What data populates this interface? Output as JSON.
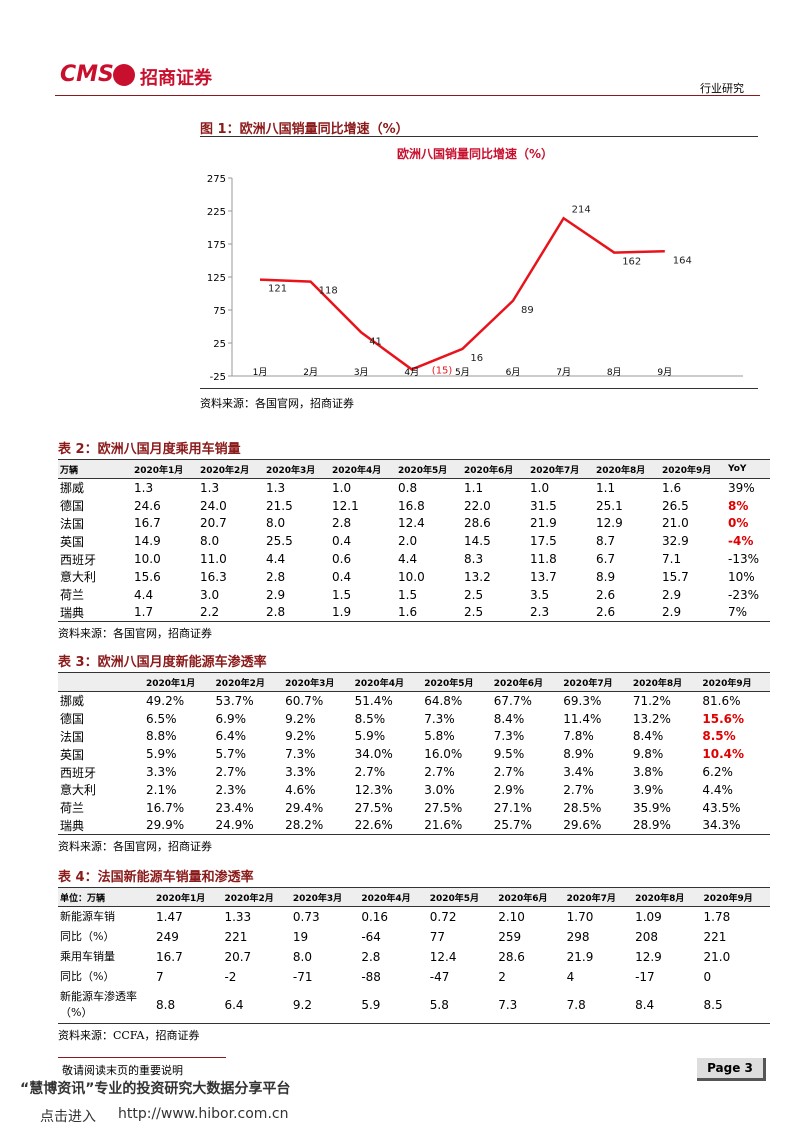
{
  "header": {
    "logo": "CMS",
    "brand": "招商证券",
    "section": "行业研究"
  },
  "figure": {
    "caption": "图 1：欧洲八国销量同比增速（%）",
    "source": "资料来源：各国官网，招商证券"
  },
  "chart_data": {
    "type": "line",
    "title": "欧洲八国销量同比增速（%）",
    "categories": [
      "1月",
      "2月",
      "3月",
      "4月",
      "5月",
      "6月",
      "7月",
      "8月",
      "9月"
    ],
    "values": [
      121,
      118,
      41,
      -15,
      16,
      89,
      214,
      162,
      164
    ],
    "value_labels": [
      "121",
      "118",
      "41",
      "(15)",
      "16",
      "89",
      "214",
      "162",
      "164"
    ],
    "color": "#e8141b",
    "ylim": [
      -25,
      275
    ],
    "yticks": [
      -25,
      25,
      75,
      125,
      175,
      225,
      275
    ]
  },
  "tables": [
    {
      "title": "表 2：欧洲八国月度乘用车销量",
      "source": "资料来源：各国官网，招商证券",
      "header": [
        "万辆",
        "2020年1月",
        "2020年2月",
        "2020年3月",
        "2020年4月",
        "2020年5月",
        "2020年6月",
        "2020年7月",
        "2020年8月",
        "2020年9月",
        "YoY"
      ],
      "rows": [
        [
          "挪威",
          "1.3",
          "1.3",
          "1.3",
          "1.0",
          "0.8",
          "1.1",
          "1.0",
          "1.1",
          "1.6",
          "39%"
        ],
        [
          "德国",
          "24.6",
          "24.0",
          "21.5",
          "12.1",
          "16.8",
          "22.0",
          "31.5",
          "25.1",
          "26.5",
          {
            "text": "8%",
            "color": "#e00000"
          }
        ],
        [
          "法国",
          "16.7",
          "20.7",
          "8.0",
          "2.8",
          "12.4",
          "28.6",
          "21.9",
          "12.9",
          "21.0",
          {
            "text": "0%",
            "color": "#e00000"
          }
        ],
        [
          "英国",
          "14.9",
          "8.0",
          "25.5",
          "0.4",
          "2.0",
          "14.5",
          "17.5",
          "8.7",
          "32.9",
          {
            "text": "-4%",
            "color": "#e00000"
          }
        ],
        [
          "西班牙",
          "10.0",
          "11.0",
          "4.4",
          "0.6",
          "4.4",
          "8.3",
          "11.8",
          "6.7",
          "7.1",
          "-13%"
        ],
        [
          "意大利",
          "15.6",
          "16.3",
          "2.8",
          "0.4",
          "10.0",
          "13.2",
          "13.7",
          "8.9",
          "15.7",
          "10%"
        ],
        [
          "荷兰",
          "4.4",
          "3.0",
          "2.9",
          "1.5",
          "1.5",
          "2.5",
          "3.5",
          "2.6",
          "2.9",
          "-23%"
        ],
        [
          "瑞典",
          "1.7",
          "2.2",
          "2.8",
          "1.9",
          "1.6",
          "2.5",
          "2.3",
          "2.6",
          "2.9",
          "7%"
        ]
      ]
    },
    {
      "title": "表 3：欧洲八国月度新能源车渗透率",
      "source": "资料来源：各国官网，招商证券",
      "header": [
        null,
        "2020年1月",
        "2020年2月",
        "2020年3月",
        "2020年4月",
        "2020年5月",
        "2020年6月",
        "2020年7月",
        "2020年8月",
        "2020年9月"
      ],
      "rows": [
        [
          "挪威",
          "49.2%",
          "53.7%",
          "60.7%",
          "51.4%",
          "64.8%",
          "67.7%",
          "69.3%",
          "71.2%",
          "81.6%"
        ],
        [
          "德国",
          "6.5%",
          "6.9%",
          "9.2%",
          "8.5%",
          "7.3%",
          "8.4%",
          "11.4%",
          "13.2%",
          {
            "text": "15.6%",
            "color": "#e00000"
          }
        ],
        [
          "法国",
          "8.8%",
          "6.4%",
          "9.2%",
          "5.9%",
          "5.8%",
          "7.3%",
          "7.8%",
          "8.4%",
          {
            "text": "8.5%",
            "color": "#e00000"
          }
        ],
        [
          "英国",
          "5.9%",
          "5.7%",
          "7.3%",
          "34.0%",
          "16.0%",
          "9.5%",
          "8.9%",
          "9.8%",
          {
            "text": "10.4%",
            "color": "#e00000"
          }
        ],
        [
          "西班牙",
          "3.3%",
          "2.7%",
          "3.3%",
          "2.7%",
          "2.7%",
          "2.7%",
          "3.4%",
          "3.8%",
          "6.2%"
        ],
        [
          "意大利",
          "2.1%",
          "2.3%",
          "4.6%",
          "12.3%",
          "3.0%",
          "2.9%",
          "2.7%",
          "3.9%",
          "4.4%"
        ],
        [
          "荷兰",
          "16.7%",
          "23.4%",
          "29.4%",
          "27.5%",
          "27.5%",
          "27.1%",
          "28.5%",
          "35.9%",
          "43.5%"
        ],
        [
          "瑞典",
          "29.9%",
          "24.9%",
          "28.2%",
          "22.6%",
          "21.6%",
          "25.7%",
          "29.6%",
          "28.9%",
          "34.3%"
        ]
      ]
    },
    {
      "title": "表 4：法国新能源车销量和渗透率",
      "source": "资料来源：CCFA，招商证券",
      "header": [
        "单位：万辆",
        "2020年1月",
        "2020年2月",
        "2020年3月",
        "2020年4月",
        "2020年5月",
        "2020年6月",
        "2020年7月",
        "2020年8月",
        "2020年9月"
      ],
      "rows": [
        [
          "新能源车销",
          "1.47",
          "1.33",
          "0.73",
          "0.16",
          "0.72",
          "2.10",
          "1.70",
          "1.09",
          "1.78"
        ],
        [
          "同比（%）",
          "249",
          "221",
          "19",
          "-64",
          "77",
          "259",
          "298",
          "208",
          "221"
        ],
        [
          "乘用车销量",
          "16.7",
          "20.7",
          "8.0",
          "2.8",
          "12.4",
          "28.6",
          "21.9",
          "12.9",
          "21.0"
        ],
        [
          "同比（%）",
          "7",
          "-2",
          "-71",
          "-88",
          "-47",
          "2",
          "4",
          "-17",
          "0"
        ],
        [
          "新能源车渗透率（%）",
          "8.8",
          "6.4",
          "9.2",
          "5.9",
          "5.8",
          "7.3",
          "7.8",
          "8.4",
          "8.5"
        ]
      ]
    }
  ],
  "footer": {
    "notice": "敬请阅读末页的重要说明",
    "page": "Page 3",
    "watermark": "“慧博资讯”专业的投资研究大数据分享平台",
    "enter": "点击进入",
    "url": "http://www.hibor.com.cn"
  }
}
